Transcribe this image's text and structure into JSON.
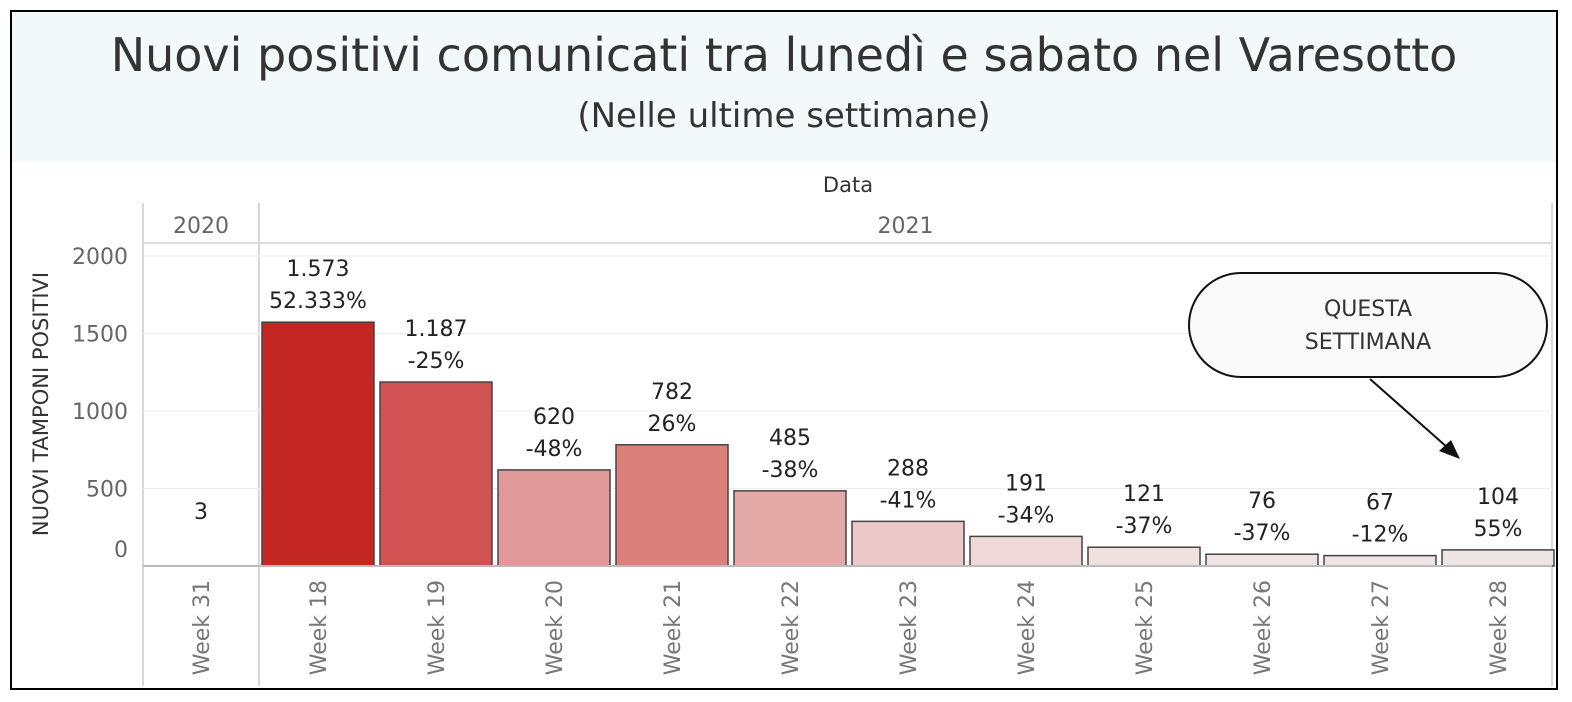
{
  "title": "Nuovi positivi comunicati tra lunedì e sabato nel Varesotto",
  "subtitle": "(Nelle ultime settimane)",
  "callout": {
    "line1": "QUESTA",
    "line2": "SETTIMANA"
  },
  "chart_data": {
    "type": "bar",
    "header_label": "Data",
    "ylabel": "NUOVI TAMPONI POSITIVI",
    "ylim": [
      0,
      2000
    ],
    "yticks": [
      "0",
      "500",
      "1000",
      "1500",
      "2000"
    ],
    "year_groups": [
      {
        "label": "2020",
        "count": 1
      },
      {
        "label": "2021",
        "count": 11
      }
    ],
    "categories": [
      "Week 31",
      "Week 18",
      "Week 19",
      "Week 20",
      "Week 21",
      "Week 22",
      "Week 23",
      "Week 24",
      "Week 25",
      "Week 26",
      "Week 27",
      "Week 28"
    ],
    "values": [
      3,
      1573,
      1187,
      620,
      782,
      485,
      288,
      191,
      121,
      76,
      67,
      104
    ],
    "value_labels": [
      "3",
      "1.573",
      "1.187",
      "620",
      "782",
      "485",
      "288",
      "191",
      "121",
      "76",
      "67",
      "104"
    ],
    "change_labels": [
      "",
      "52.333%",
      "-25%",
      "-48%",
      "26%",
      "-38%",
      "-41%",
      "-34%",
      "-37%",
      "-37%",
      "-12%",
      "55%"
    ],
    "colors": [
      "#ffffff",
      "#c42623",
      "#d05252",
      "#e09898",
      "#dc807c",
      "#e5aaa8",
      "#ecc8c8",
      "#eed8d8",
      "#f0e0e0",
      "#f0e3e3",
      "#efe4e4",
      "#efe4e4"
    ]
  }
}
